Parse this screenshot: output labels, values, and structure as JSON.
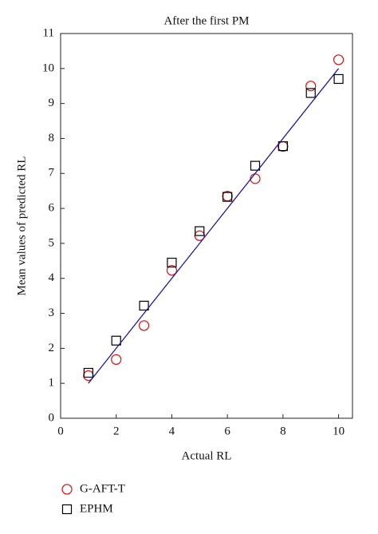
{
  "chart_data": {
    "type": "scatter",
    "title": "After the first PM",
    "x_label": "Actual RL",
    "y_label": "Mean values of predicted RL",
    "xlim": [
      0,
      10.5
    ],
    "ylim": [
      0,
      11
    ],
    "xticks": [
      0,
      2,
      4,
      6,
      8,
      10
    ],
    "yticks": [
      0,
      1,
      2,
      3,
      4,
      5,
      6,
      7,
      8,
      9,
      10,
      11
    ],
    "legend": "bottom-left",
    "series": [
      {
        "name": "G-AFT-T",
        "color": "#d02020",
        "marker": "circle",
        "x": [
          1,
          2,
          3,
          4,
          5,
          6,
          7,
          8,
          9,
          10
        ],
        "values": [
          1.22,
          1.68,
          2.65,
          4.23,
          5.22,
          6.35,
          6.85,
          7.77,
          9.5,
          10.25
        ]
      },
      {
        "name": "EPHM",
        "color": "#000000",
        "marker": "square",
        "x": [
          1,
          2,
          3,
          4,
          5,
          6,
          7,
          8,
          9,
          10
        ],
        "values": [
          1.3,
          2.22,
          3.22,
          4.45,
          5.35,
          6.33,
          7.22,
          7.78,
          9.3,
          9.7
        ]
      },
      {
        "color": "#1a1a9a",
        "marker": "line",
        "x": [
          1,
          10
        ],
        "values": [
          1,
          10
        ]
      }
    ]
  }
}
